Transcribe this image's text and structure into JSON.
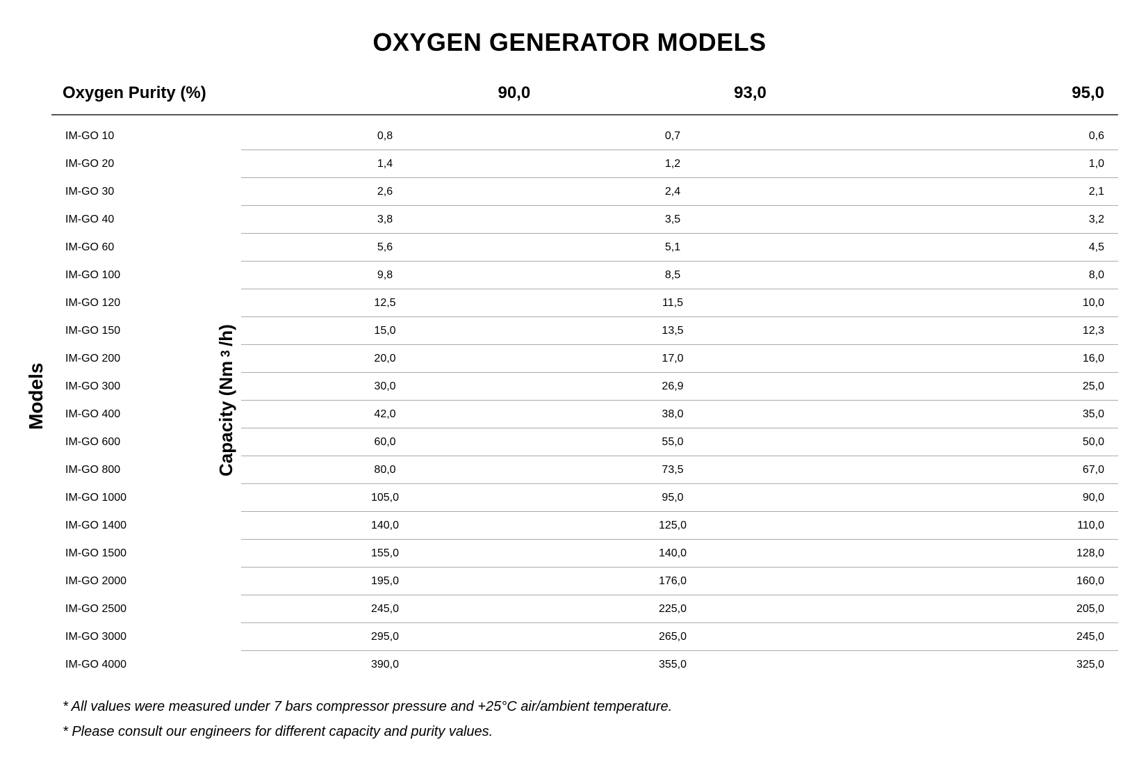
{
  "title": "OXYGEN GENERATOR MODELS",
  "vert_models_label": "Models",
  "vert_capacity_label_pre": "Capacity (Nm",
  "vert_capacity_label_sup": "3",
  "vert_capacity_label_post": "/h)",
  "header": {
    "purity_label": "Oxygen Purity (%)",
    "cols": [
      "90,0",
      "93,0",
      "95,0"
    ]
  },
  "table": {
    "type": "table",
    "row_border_color": "#aaaaaa",
    "top_border_color": "#555555",
    "text_color": "#000000",
    "background_color": "#ffffff",
    "header_fontsize": 24,
    "body_fontsize": 22,
    "title_fontsize": 36,
    "models": [
      "IM-GO 10",
      "IM-GO 20",
      "IM-GO 30",
      "IM-GO 40",
      "IM-GO 60",
      "IM-GO 100",
      "IM-GO 120",
      "IM-GO 150",
      "IM-GO 200",
      "IM-GO 300",
      "IM-GO 400",
      "IM-GO 600",
      "IM-GO 800",
      "IM-GO 1000",
      "IM-GO 1400",
      "IM-GO 1500",
      "IM-GO 2000",
      "IM-GO 2500",
      "IM-GO 3000",
      "IM-GO 4000"
    ],
    "values": [
      [
        "0,8",
        "0,7",
        "0,6"
      ],
      [
        "1,4",
        "1,2",
        "1,0"
      ],
      [
        "2,6",
        "2,4",
        "2,1"
      ],
      [
        "3,8",
        "3,5",
        "3,2"
      ],
      [
        "5,6",
        "5,1",
        "4,5"
      ],
      [
        "9,8",
        "8,5",
        "8,0"
      ],
      [
        "12,5",
        "11,5",
        "10,0"
      ],
      [
        "15,0",
        "13,5",
        "12,3"
      ],
      [
        "20,0",
        "17,0",
        "16,0"
      ],
      [
        "30,0",
        "26,9",
        "25,0"
      ],
      [
        "42,0",
        "38,0",
        "35,0"
      ],
      [
        "60,0",
        "55,0",
        "50,0"
      ],
      [
        "80,0",
        "73,5",
        "67,0"
      ],
      [
        "105,0",
        "95,0",
        "90,0"
      ],
      [
        "140,0",
        "125,0",
        "110,0"
      ],
      [
        "155,0",
        "140,0",
        "128,0"
      ],
      [
        "195,0",
        "176,0",
        "160,0"
      ],
      [
        "245,0",
        "225,0",
        "205,0"
      ],
      [
        "295,0",
        "265,0",
        "245,0"
      ],
      [
        "390,0",
        "355,0",
        "325,0"
      ]
    ]
  },
  "footnotes": [
    "* All values were measured under 7 bars compressor pressure and +25°C air/ambient temperature.",
    "* Please consult our engineers for different capacity and purity values."
  ]
}
